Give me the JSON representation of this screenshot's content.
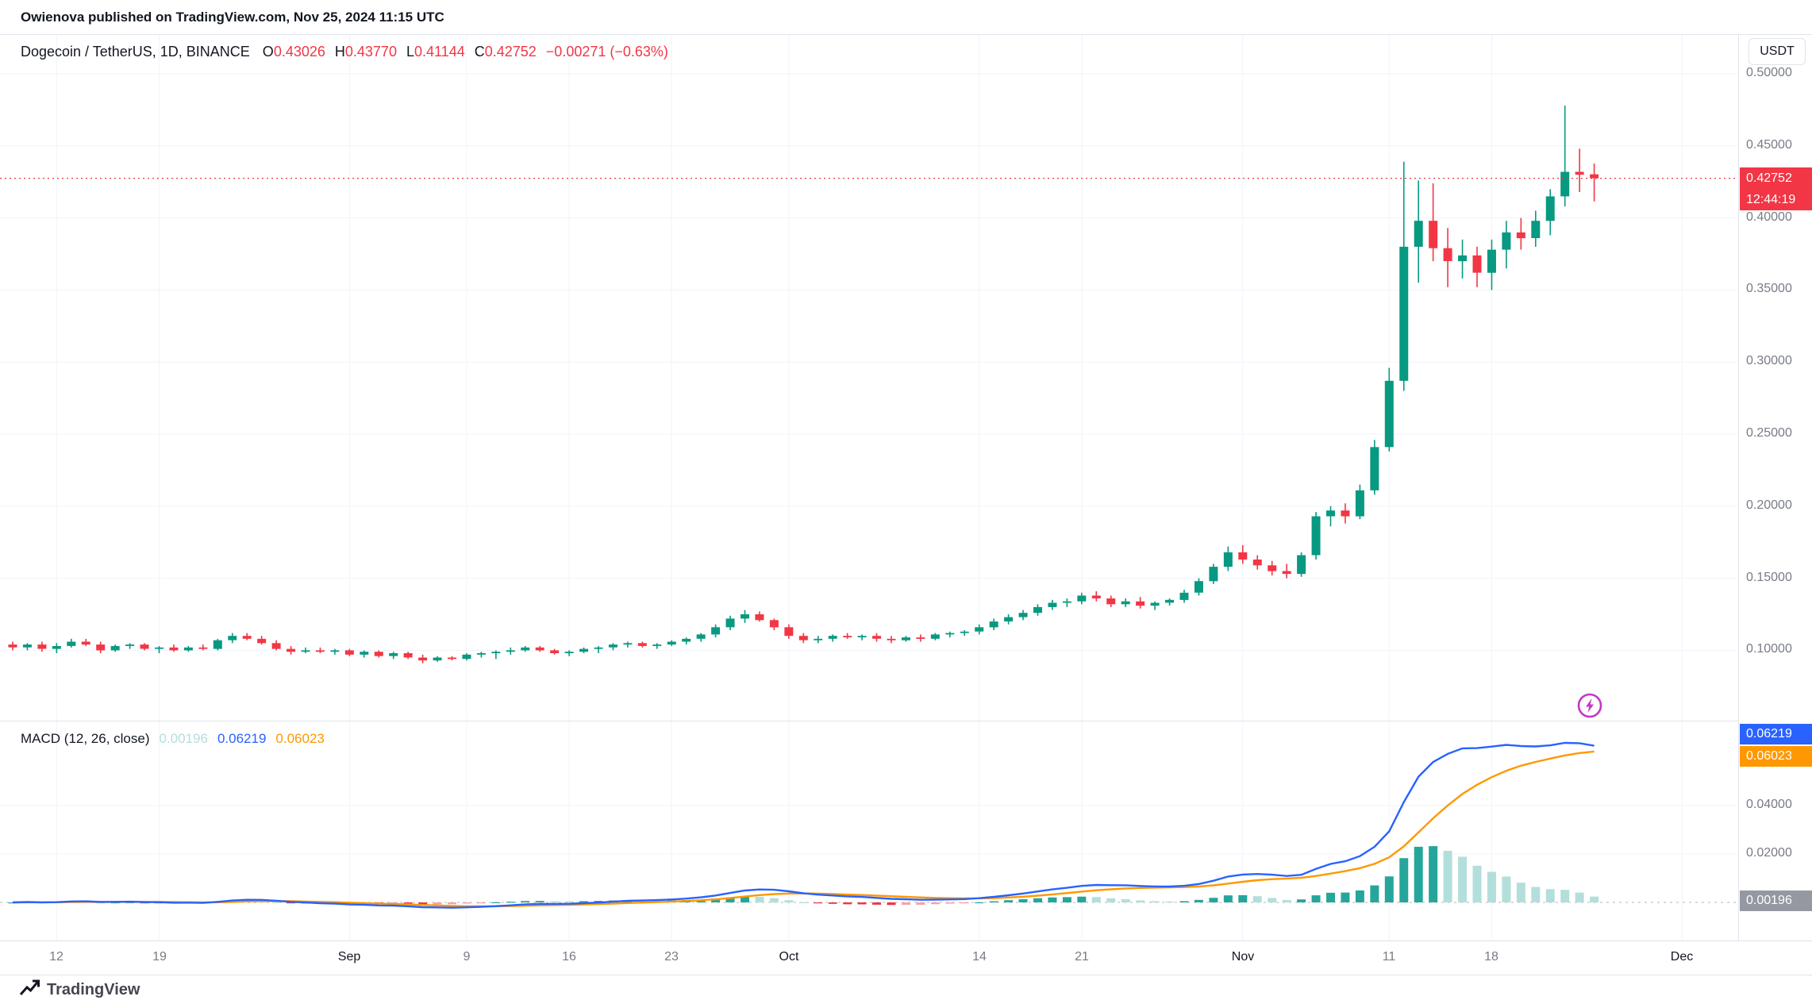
{
  "attribution": "Owienova published on TradingView.com, Nov 25, 2024 11:15 UTC",
  "header": {
    "symbol_title": "Dogecoin / TetherUS, 1D, BINANCE",
    "ohlc": [
      {
        "label": "O",
        "value": "0.43026"
      },
      {
        "label": "H",
        "value": "0.43770"
      },
      {
        "label": "L",
        "value": "0.41144"
      },
      {
        "label": "C",
        "value": "0.42752"
      }
    ],
    "change": "−0.00271 (−0.63%)",
    "currency_button": "USDT"
  },
  "price_axis": {
    "ticks": [
      {
        "label": "0.50000",
        "value": 0.5
      },
      {
        "label": "0.45000",
        "value": 0.45
      },
      {
        "label": "0.40000",
        "value": 0.4
      },
      {
        "label": "0.35000",
        "value": 0.35
      },
      {
        "label": "0.30000",
        "value": 0.3
      },
      {
        "label": "0.25000",
        "value": 0.25
      },
      {
        "label": "0.20000",
        "value": 0.2
      },
      {
        "label": "0.15000",
        "value": 0.15
      },
      {
        "label": "0.10000",
        "value": 0.1
      }
    ],
    "last_price_badge": "0.42752",
    "countdown_badge": "12:44:19"
  },
  "macd_pane": {
    "title": "MACD (12, 26, close)",
    "values": {
      "histogram": "0.00196",
      "macd": "0.06219",
      "signal": "0.06023"
    },
    "axis_ticks": [
      {
        "label": "0.04000",
        "value": 0.04
      },
      {
        "label": "0.02000",
        "value": 0.02
      }
    ],
    "badges": {
      "macd": "0.06219",
      "signal": "0.06023",
      "histogram": "0.00196"
    }
  },
  "time_axis": {
    "ticks": [
      {
        "label": "12",
        "index": 3
      },
      {
        "label": "19",
        "index": 10
      },
      {
        "label": "Sep",
        "index": 23,
        "is_month": true
      },
      {
        "label": "9",
        "index": 31
      },
      {
        "label": "16",
        "index": 38
      },
      {
        "label": "23",
        "index": 45
      },
      {
        "label": "Oct",
        "index": 53,
        "is_month": true
      },
      {
        "label": "14",
        "index": 66
      },
      {
        "label": "21",
        "index": 73
      },
      {
        "label": "Nov",
        "index": 84,
        "is_month": true
      },
      {
        "label": "11",
        "index": 94
      },
      {
        "label": "18",
        "index": 101
      },
      {
        "label": "Dec",
        "index": 114,
        "is_month": true
      }
    ]
  },
  "footer": {
    "brand": "TradingView"
  },
  "colors": {
    "up": "#089981",
    "down": "#f23645",
    "macd_line": "#2962ff",
    "signal_line": "#ff9800",
    "hist_up": "#26a69a",
    "hist_up_weak": "#b2dfdb",
    "hist_down": "#f23645",
    "hist_down_weak": "#faa1a4",
    "grid": "#f0f3fa",
    "axis_text": "#787b86",
    "text": "#131722",
    "last_price_line": "#f23645",
    "flash_accent": "#c437c9"
  },
  "chart_data": {
    "type": "candlestick",
    "title": "Dogecoin / TetherUS",
    "exchange": "BINANCE",
    "interval": "1D",
    "quote_currency": "USDT",
    "last_price": 0.42752,
    "ylim": [
      0.085,
      0.5
    ],
    "dates": [
      "Aug 9",
      "Aug 10",
      "Aug 11",
      "Aug 12",
      "Aug 13",
      "Aug 14",
      "Aug 15",
      "Aug 16",
      "Aug 17",
      "Aug 18",
      "Aug 19",
      "Aug 20",
      "Aug 21",
      "Aug 22",
      "Aug 23",
      "Aug 24",
      "Aug 25",
      "Aug 26",
      "Aug 27",
      "Aug 28",
      "Aug 29",
      "Aug 30",
      "Aug 31",
      "Sep 1",
      "Sep 2",
      "Sep 3",
      "Sep 4",
      "Sep 5",
      "Sep 6",
      "Sep 7",
      "Sep 8",
      "Sep 9",
      "Sep 10",
      "Sep 11",
      "Sep 12",
      "Sep 13",
      "Sep 14",
      "Sep 15",
      "Sep 16",
      "Sep 17",
      "Sep 18",
      "Sep 19",
      "Sep 20",
      "Sep 21",
      "Sep 22",
      "Sep 23",
      "Sep 24",
      "Sep 25",
      "Sep 26",
      "Sep 27",
      "Sep 28",
      "Sep 29",
      "Sep 30",
      "Oct 1",
      "Oct 2",
      "Oct 3",
      "Oct 4",
      "Oct 5",
      "Oct 6",
      "Oct 7",
      "Oct 8",
      "Oct 9",
      "Oct 10",
      "Oct 11",
      "Oct 12",
      "Oct 13",
      "Oct 14",
      "Oct 15",
      "Oct 16",
      "Oct 17",
      "Oct 18",
      "Oct 19",
      "Oct 20",
      "Oct 21",
      "Oct 22",
      "Oct 23",
      "Oct 24",
      "Oct 25",
      "Oct 26",
      "Oct 27",
      "Oct 28",
      "Oct 29",
      "Oct 30",
      "Oct 31",
      "Nov 1",
      "Nov 2",
      "Nov 3",
      "Nov 4",
      "Nov 5",
      "Nov 6",
      "Nov 7",
      "Nov 8",
      "Nov 9",
      "Nov 10",
      "Nov 11",
      "Nov 12",
      "Nov 13",
      "Nov 14",
      "Nov 15",
      "Nov 16",
      "Nov 17",
      "Nov 18",
      "Nov 19",
      "Nov 20",
      "Nov 21",
      "Nov 22",
      "Nov 23",
      "Nov 24",
      "Nov 25"
    ],
    "ohlc": {
      "o": [
        0.104,
        0.102,
        0.104,
        0.101,
        0.103,
        0.106,
        0.104,
        0.1,
        0.103,
        0.104,
        0.101,
        0.102,
        0.1,
        0.102,
        0.101,
        0.107,
        0.11,
        0.108,
        0.105,
        0.101,
        0.099,
        0.1,
        0.099,
        0.1,
        0.097,
        0.099,
        0.096,
        0.098,
        0.095,
        0.093,
        0.095,
        0.094,
        0.097,
        0.098,
        0.099,
        0.1,
        0.102,
        0.1,
        0.098,
        0.099,
        0.101,
        0.102,
        0.104,
        0.105,
        0.103,
        0.104,
        0.106,
        0.108,
        0.111,
        0.116,
        0.122,
        0.125,
        0.121,
        0.116,
        0.11,
        0.107,
        0.108,
        0.11,
        0.109,
        0.11,
        0.108,
        0.107,
        0.109,
        0.108,
        0.111,
        0.112,
        0.113,
        0.116,
        0.12,
        0.123,
        0.126,
        0.13,
        0.133,
        0.134,
        0.138,
        0.136,
        0.132,
        0.134,
        0.131,
        0.133,
        0.135,
        0.14,
        0.148,
        0.158,
        0.168,
        0.163,
        0.159,
        0.155,
        0.153,
        0.166,
        0.193,
        0.197,
        0.193,
        0.211,
        0.241,
        0.287,
        0.38,
        0.398,
        0.379,
        0.37,
        0.374,
        0.362,
        0.378,
        0.39,
        0.386,
        0.398,
        0.415,
        0.432,
        0.43026
      ],
      "h": [
        0.106,
        0.105,
        0.106,
        0.105,
        0.108,
        0.108,
        0.106,
        0.104,
        0.105,
        0.105,
        0.103,
        0.104,
        0.103,
        0.104,
        0.108,
        0.112,
        0.112,
        0.11,
        0.107,
        0.103,
        0.102,
        0.102,
        0.101,
        0.101,
        0.1,
        0.1,
        0.099,
        0.099,
        0.097,
        0.096,
        0.096,
        0.098,
        0.099,
        0.1,
        0.102,
        0.103,
        0.103,
        0.101,
        0.1,
        0.102,
        0.103,
        0.105,
        0.106,
        0.106,
        0.105,
        0.107,
        0.109,
        0.112,
        0.118,
        0.124,
        0.128,
        0.127,
        0.122,
        0.118,
        0.112,
        0.11,
        0.111,
        0.112,
        0.111,
        0.112,
        0.11,
        0.11,
        0.111,
        0.112,
        0.113,
        0.114,
        0.118,
        0.122,
        0.125,
        0.128,
        0.132,
        0.135,
        0.136,
        0.14,
        0.141,
        0.138,
        0.136,
        0.137,
        0.134,
        0.136,
        0.142,
        0.15,
        0.16,
        0.172,
        0.173,
        0.166,
        0.162,
        0.16,
        0.168,
        0.196,
        0.2,
        0.202,
        0.215,
        0.246,
        0.296,
        0.439,
        0.426,
        0.424,
        0.393,
        0.385,
        0.38,
        0.385,
        0.398,
        0.4,
        0.405,
        0.42,
        0.478,
        0.448,
        0.4377
      ],
      "l": [
        0.1,
        0.1,
        0.099,
        0.098,
        0.102,
        0.103,
        0.098,
        0.099,
        0.101,
        0.1,
        0.098,
        0.099,
        0.099,
        0.1,
        0.1,
        0.105,
        0.107,
        0.104,
        0.1,
        0.097,
        0.098,
        0.098,
        0.097,
        0.096,
        0.095,
        0.095,
        0.094,
        0.094,
        0.091,
        0.092,
        0.093,
        0.093,
        0.095,
        0.094,
        0.097,
        0.099,
        0.099,
        0.097,
        0.096,
        0.098,
        0.098,
        0.1,
        0.102,
        0.102,
        0.101,
        0.103,
        0.104,
        0.106,
        0.109,
        0.114,
        0.119,
        0.12,
        0.114,
        0.108,
        0.105,
        0.105,
        0.106,
        0.108,
        0.107,
        0.106,
        0.105,
        0.106,
        0.106,
        0.107,
        0.109,
        0.11,
        0.111,
        0.114,
        0.118,
        0.121,
        0.124,
        0.128,
        0.13,
        0.132,
        0.134,
        0.13,
        0.13,
        0.129,
        0.128,
        0.131,
        0.133,
        0.138,
        0.146,
        0.155,
        0.16,
        0.156,
        0.152,
        0.15,
        0.151,
        0.163,
        0.186,
        0.188,
        0.191,
        0.208,
        0.238,
        0.28,
        0.355,
        0.37,
        0.352,
        0.358,
        0.352,
        0.35,
        0.365,
        0.378,
        0.38,
        0.388,
        0.408,
        0.418,
        0.41144
      ],
      "c": [
        0.102,
        0.104,
        0.101,
        0.103,
        0.106,
        0.104,
        0.1,
        0.103,
        0.104,
        0.101,
        0.102,
        0.1,
        0.102,
        0.101,
        0.107,
        0.11,
        0.108,
        0.105,
        0.101,
        0.099,
        0.1,
        0.099,
        0.1,
        0.097,
        0.099,
        0.096,
        0.098,
        0.095,
        0.093,
        0.095,
        0.094,
        0.097,
        0.098,
        0.099,
        0.1,
        0.102,
        0.1,
        0.098,
        0.099,
        0.101,
        0.102,
        0.104,
        0.105,
        0.103,
        0.104,
        0.106,
        0.108,
        0.111,
        0.116,
        0.122,
        0.125,
        0.121,
        0.116,
        0.11,
        0.107,
        0.108,
        0.11,
        0.109,
        0.11,
        0.108,
        0.107,
        0.109,
        0.108,
        0.111,
        0.112,
        0.113,
        0.116,
        0.12,
        0.123,
        0.126,
        0.13,
        0.133,
        0.134,
        0.138,
        0.136,
        0.132,
        0.134,
        0.131,
        0.133,
        0.135,
        0.14,
        0.148,
        0.158,
        0.168,
        0.163,
        0.159,
        0.155,
        0.153,
        0.166,
        0.193,
        0.197,
        0.193,
        0.211,
        0.241,
        0.287,
        0.38,
        0.398,
        0.379,
        0.37,
        0.374,
        0.362,
        0.378,
        0.39,
        0.386,
        0.398,
        0.415,
        0.432,
        0.43,
        0.42752
      ]
    },
    "indicator": {
      "name": "MACD",
      "fast": 12,
      "slow": 26,
      "signal_period": 9,
      "source": "close",
      "last_histogram": 0.00196,
      "last_macd": 0.06219,
      "last_signal": 0.06023
    }
  }
}
